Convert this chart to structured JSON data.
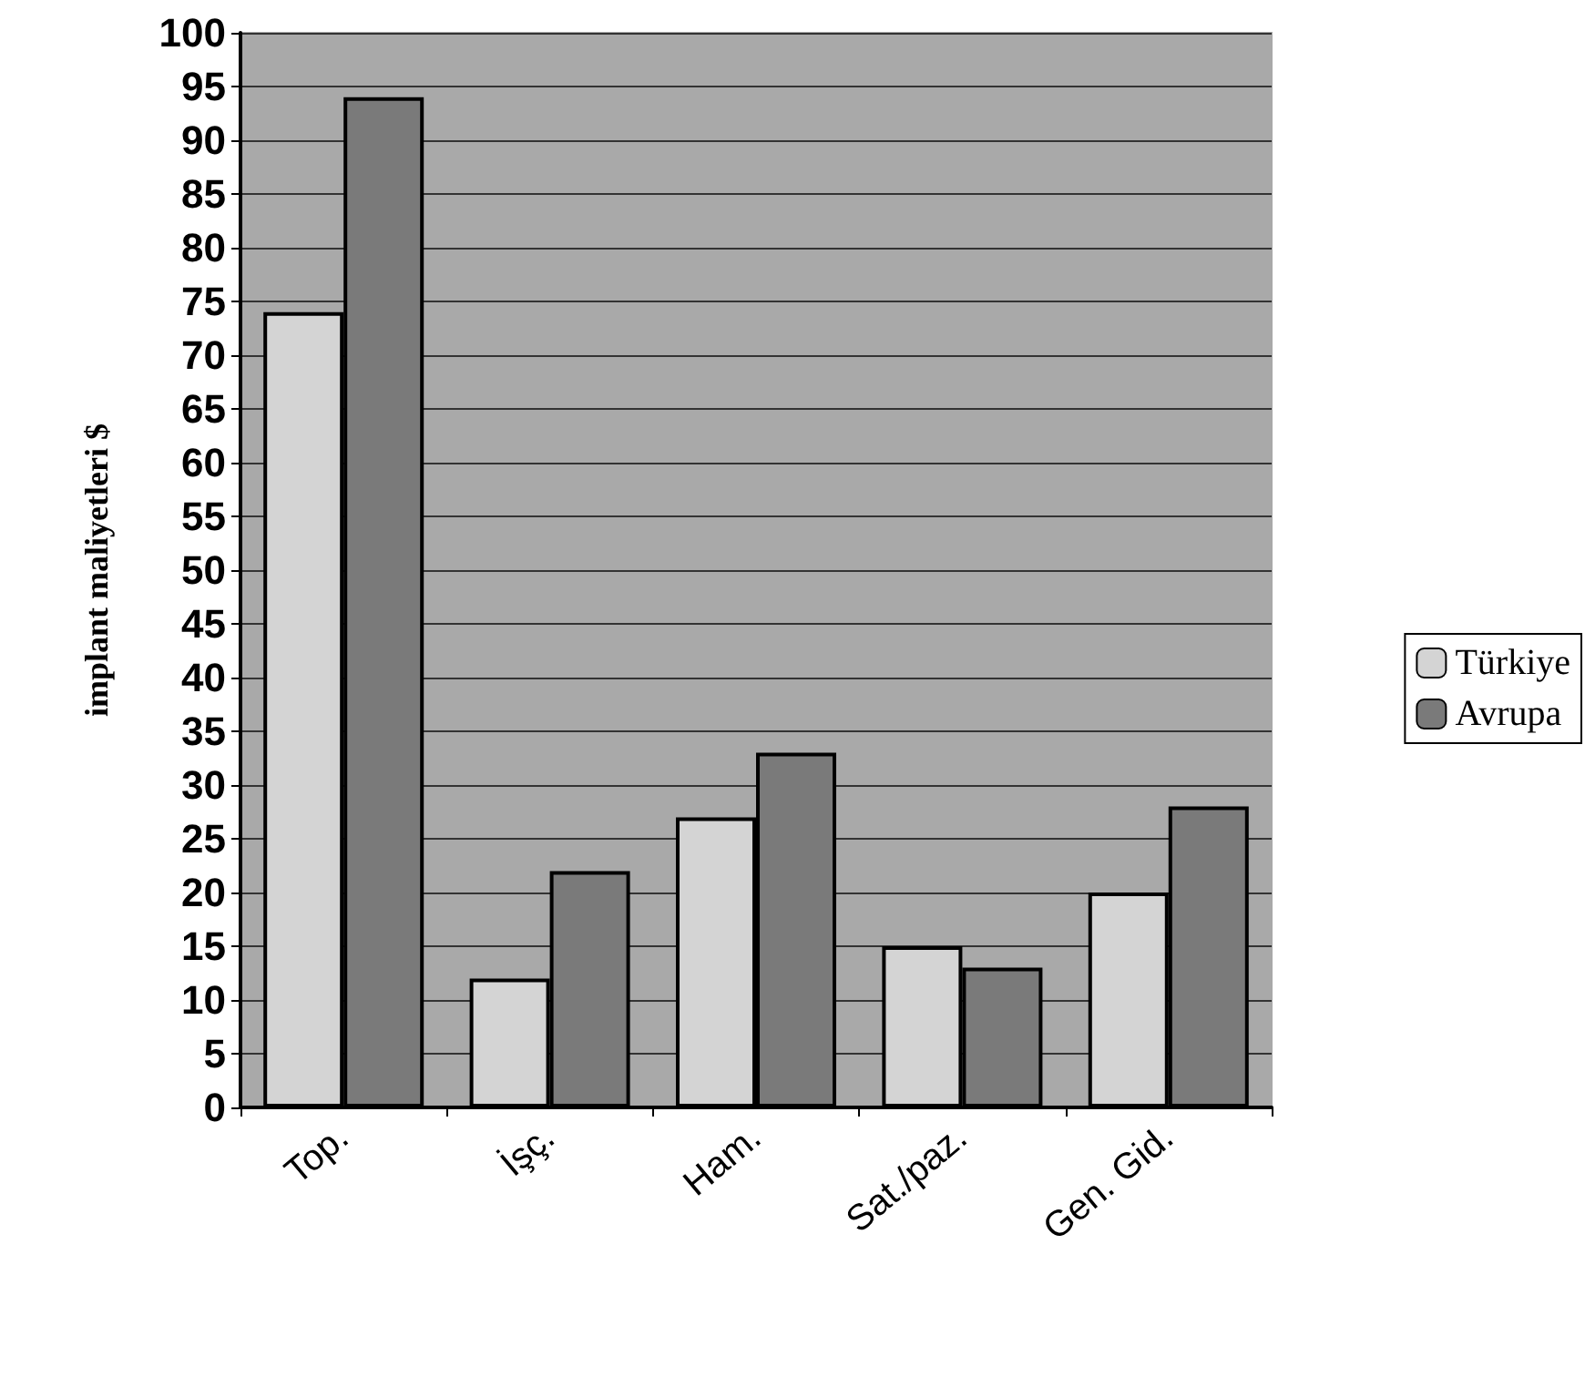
{
  "chart_data": {
    "type": "bar",
    "ylabel": "implant maliyetleri $",
    "categories": [
      "Top.",
      "İşç.",
      "Ham.",
      "Sat./paz.",
      "Gen. Gid."
    ],
    "series": [
      {
        "name": "Türkiye",
        "color": "#d4d4d4",
        "values": [
          74,
          12,
          27,
          15,
          20
        ]
      },
      {
        "name": "Avrupa",
        "color": "#7a7a7a",
        "values": [
          94,
          22,
          33,
          13,
          28
        ]
      }
    ],
    "ylim": [
      0,
      100
    ],
    "yticks": [
      0,
      5,
      10,
      15,
      20,
      25,
      30,
      35,
      40,
      45,
      50,
      55,
      60,
      65,
      70,
      75,
      80,
      85,
      90,
      95,
      100
    ],
    "grid": "y",
    "legend": "right"
  }
}
